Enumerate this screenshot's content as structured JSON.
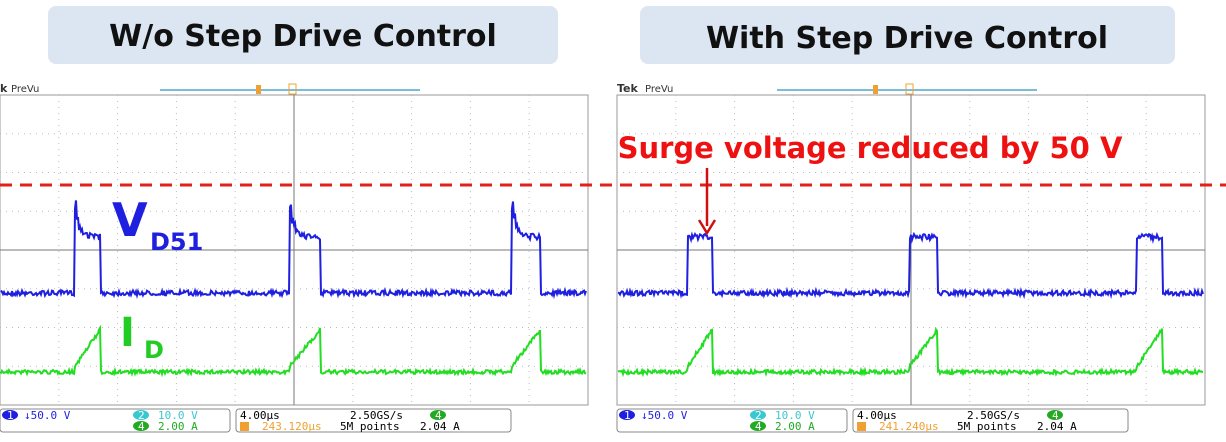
{
  "panels": [
    {
      "title": "W/o Step Drive Control",
      "scope": {
        "brand": "k",
        "label": "PreVu",
        "status": {
          "ch1": "1",
          "ch1_scale": "↓50.0 V",
          "ch2": "2",
          "ch2_scale": "10.0 V",
          "ch4": "4",
          "ch4_scale": "2.00 A",
          "timebase": "4.00µs",
          "position": "243.120µs",
          "sample_rate": "2.50GS/s",
          "record": "5M points",
          "trigger_ch": "4",
          "trigger_level": "2.04 A"
        }
      }
    },
    {
      "title": "With Step Drive Control",
      "scope": {
        "brand": "Tek",
        "label": "PreVu",
        "status": {
          "ch1": "1",
          "ch1_scale": "↓50.0 V",
          "ch2": "2",
          "ch2_scale": "10.0 V",
          "ch4": "4",
          "ch4_scale": "2.00 A",
          "timebase": "4.00µs",
          "position": "241.240µs",
          "sample_rate": "2.50GS/s",
          "record": "5M points",
          "trigger_ch": "4",
          "trigger_level": "2.04 A"
        }
      }
    }
  ],
  "annotations": {
    "surge": "Surge voltage reduced by 50 V",
    "vd": "V",
    "vd_sub": "D51",
    "id": "I",
    "id_sub": "D"
  }
}
